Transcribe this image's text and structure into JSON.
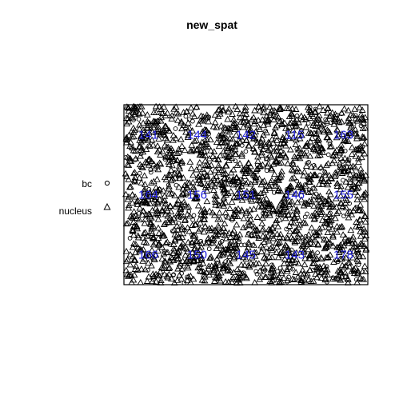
{
  "chart_data": {
    "type": "scatter",
    "title": "new_spat",
    "xlabel": "",
    "ylabel": "",
    "axes_visible": false,
    "window": {
      "xlim": [
        0,
        1
      ],
      "ylim": [
        0,
        1
      ]
    },
    "legend": {
      "placement": "left",
      "entries": [
        {
          "label": "bc",
          "marker": "circle"
        },
        {
          "label": "nucleus",
          "marker": "triangle"
        }
      ]
    },
    "quadrat_counts": {
      "nx": 5,
      "ny": 3,
      "color": "#2222dd",
      "rows": [
        [
          "141",
          "144",
          "142",
          "115",
          "163"
        ],
        [
          "164",
          "156",
          "151",
          "146",
          "155"
        ],
        [
          "166",
          "150",
          "145",
          "143",
          "178"
        ]
      ]
    },
    "point_summary": {
      "approx_points": 2259,
      "dominant_marker": "triangle"
    }
  }
}
